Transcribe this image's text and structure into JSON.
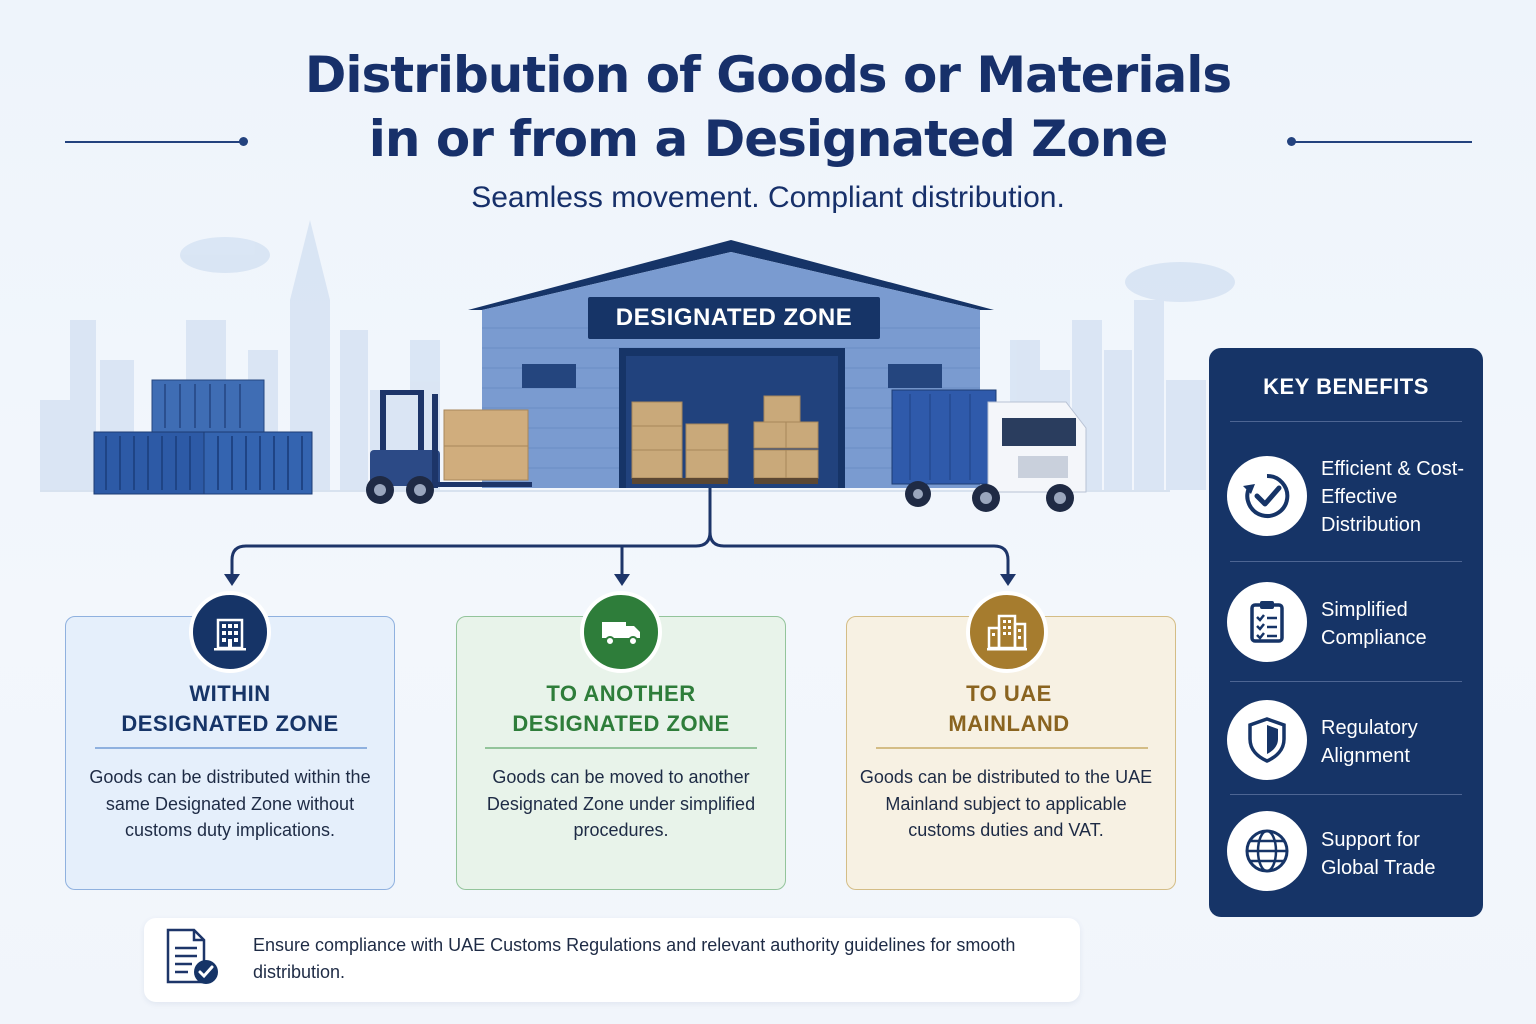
{
  "title": {
    "line1": "Distribution of Goods or Materials",
    "line2": "in or from a Designated Zone"
  },
  "subtitle": "Seamless movement. Compliant distribution.",
  "warehouse": {
    "sign": "DESIGNATED ZONE"
  },
  "destinations": [
    {
      "title_line1": "WITHIN",
      "title_line2": "DESIGNATED ZONE",
      "description": "Goods can be distributed within the same Designated Zone without customs duty implications.",
      "icon": "building-icon",
      "color": "#163467"
    },
    {
      "title_line1": "TO ANOTHER",
      "title_line2": "DESIGNATED ZONE",
      "description": "Goods can be moved to another Designated Zone under simplified procedures.",
      "icon": "truck-icon",
      "color": "#2e7d3a"
    },
    {
      "title_line1": "TO UAE",
      "title_line2": "MAINLAND",
      "description": "Goods can be distributed to the UAE Mainland subject to applicable customs duties and VAT.",
      "icon": "city-icon",
      "color": "#a67c2e"
    }
  ],
  "key_benefits": {
    "title": "KEY BENEFITS",
    "items": [
      {
        "label": "Efficient & Cost-Effective Distribution",
        "icon": "check-cycle-icon"
      },
      {
        "label": "Simplified Compliance",
        "icon": "clipboard-icon"
      },
      {
        "label": "Regulatory Alignment",
        "icon": "shield-icon"
      },
      {
        "label": "Support for Global Trade",
        "icon": "globe-icon"
      }
    ]
  },
  "note": {
    "text": "Ensure compliance with UAE Customs Regulations and relevant authority guidelines for smooth distribution.",
    "icon": "document-check-icon"
  }
}
